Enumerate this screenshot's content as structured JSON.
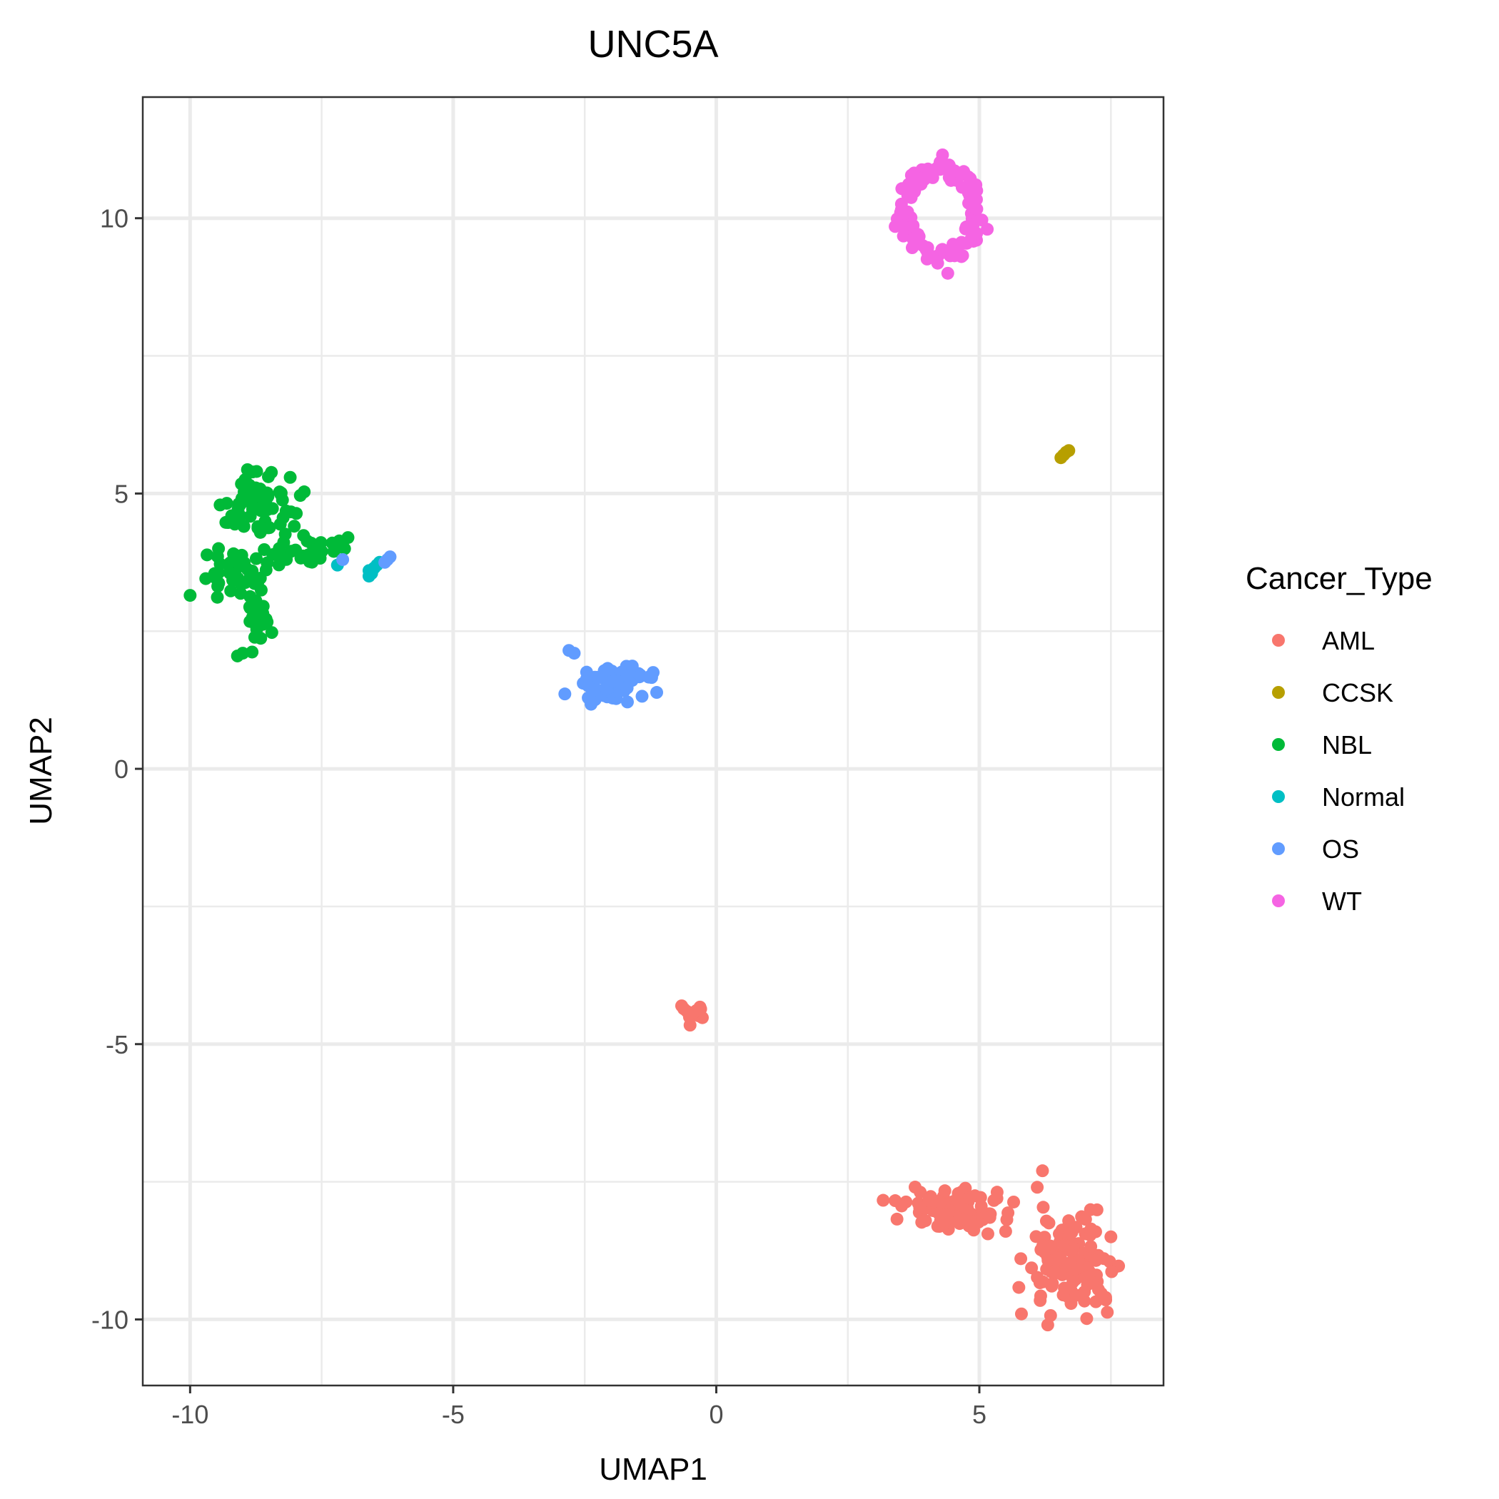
{
  "chart_data": {
    "type": "scatter",
    "title": "UNC5A",
    "xlabel": "UMAP1",
    "ylabel": "UMAP2",
    "xlim": [
      -10.9,
      8.5
    ],
    "ylim": [
      -11.2,
      12.2
    ],
    "x_ticks": [
      -10,
      -5,
      0,
      5
    ],
    "y_ticks": [
      -10,
      -5,
      0,
      5,
      10
    ],
    "x_tick_labels": [
      "-10",
      "-5",
      "0",
      "5"
    ],
    "y_tick_labels": [
      "-10",
      "-5",
      "0",
      "5",
      "10"
    ],
    "grid": true,
    "legend": {
      "title": "Cancer_Type",
      "position": "right"
    },
    "series": [
      {
        "name": "AML",
        "color": "#F8766D",
        "clusters": [
          {
            "cx": -0.45,
            "cy": -4.45,
            "rx": 0.3,
            "ry": 0.25,
            "n": 14
          },
          {
            "cx": 4.5,
            "cy": -8.0,
            "rx": 1.0,
            "ry": 0.35,
            "n": 85
          },
          {
            "cx": 6.8,
            "cy": -9.0,
            "rx": 0.8,
            "ry": 0.8,
            "n": 120
          }
        ],
        "points": [
          [
            6.2,
            -7.3
          ],
          [
            6.1,
            -7.6
          ],
          [
            5.5,
            -8.4
          ],
          [
            7.5,
            -8.5
          ],
          [
            6.3,
            -10.1
          ],
          [
            5.8,
            -9.9
          ],
          [
            7.4,
            -9.6
          ]
        ]
      },
      {
        "name": "CCSK",
        "color": "#B79F00",
        "clusters": [],
        "points": [
          [
            6.55,
            5.65
          ],
          [
            6.65,
            5.75
          ],
          [
            6.7,
            5.78
          ],
          [
            6.6,
            5.7
          ]
        ]
      },
      {
        "name": "NBL",
        "color": "#00BA38",
        "clusters": [
          {
            "cx": -8.7,
            "cy": 4.8,
            "rx": 0.8,
            "ry": 0.55,
            "n": 70
          },
          {
            "cx": -9.2,
            "cy": 3.5,
            "rx": 0.7,
            "ry": 0.5,
            "n": 45
          },
          {
            "cx": -7.8,
            "cy": 3.9,
            "rx": 0.8,
            "ry": 0.3,
            "n": 25
          },
          {
            "cx": -8.7,
            "cy": 2.6,
            "rx": 0.2,
            "ry": 0.5,
            "n": 20
          }
        ],
        "points": [
          [
            -9.1,
            2.05
          ],
          [
            -9.0,
            2.1
          ],
          [
            -10.0,
            3.15
          ],
          [
            -7.0,
            4.2
          ],
          [
            -7.3,
            4.1
          ]
        ]
      },
      {
        "name": "Normal",
        "color": "#00BFC4",
        "clusters": [],
        "points": [
          [
            -7.2,
            3.7
          ],
          [
            -6.6,
            3.5
          ],
          [
            -6.55,
            3.55
          ],
          [
            -6.5,
            3.65
          ],
          [
            -6.45,
            3.7
          ],
          [
            -6.6,
            3.6
          ],
          [
            -6.4,
            3.75
          ]
        ]
      },
      {
        "name": "OS",
        "color": "#619CFF",
        "clusters": [
          {
            "cx": -2.0,
            "cy": 1.55,
            "rx": 0.75,
            "ry": 0.32,
            "n": 65
          }
        ],
        "points": [
          [
            -7.1,
            3.8
          ],
          [
            -6.3,
            3.75
          ],
          [
            -6.2,
            3.85
          ],
          [
            -6.25,
            3.8
          ],
          [
            -2.8,
            2.15
          ],
          [
            -2.7,
            2.1
          ],
          [
            -1.2,
            1.75
          ]
        ]
      },
      {
        "name": "WT",
        "color": "#F564E3",
        "clusters": [
          {
            "cx": 4.25,
            "cy": 10.1,
            "rx": 0.75,
            "ry": 0.85,
            "n": 110,
            "shape": "ring"
          }
        ],
        "points": [
          [
            4.3,
            11.15
          ],
          [
            3.4,
            9.85
          ],
          [
            5.15,
            9.8
          ],
          [
            4.4,
            9.0
          ]
        ]
      }
    ]
  }
}
